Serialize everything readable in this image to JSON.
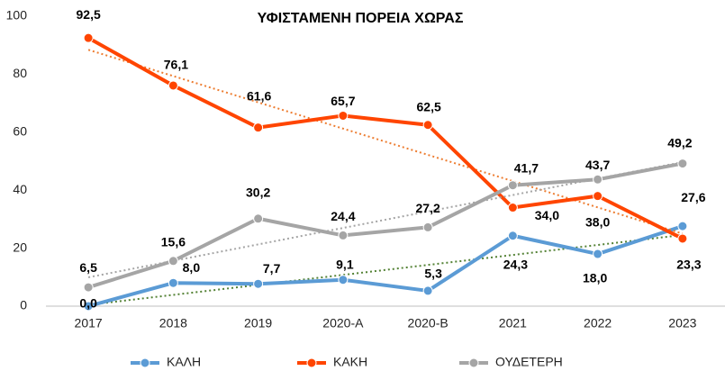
{
  "chart_data": {
    "type": "line",
    "title": "ΥΦΙΣΤΑΜΕΝΗ ΠΟΡΕΙΑ ΧΩΡΑΣ",
    "categories": [
      "2017",
      "2018",
      "2019",
      "2020-A",
      "2020-B",
      "2021",
      "2022",
      "2023"
    ],
    "series": [
      {
        "name": "ΚΑΛΗ",
        "color": "#5b9bd5",
        "trend_color": "#548235",
        "values": [
          0.0,
          8.0,
          7.7,
          9.1,
          5.3,
          24.3,
          18.0,
          27.6
        ],
        "value_labels": [
          "0,0",
          "8,0",
          "7,7",
          "9,1",
          "5,3",
          "24,3",
          "18,0",
          "27,6"
        ]
      },
      {
        "name": "ΚΑΚΗ",
        "color": "#ff4500",
        "trend_color": "#ed7d31",
        "values": [
          92.5,
          76.1,
          61.6,
          65.7,
          62.5,
          34.0,
          38.0,
          23.3
        ],
        "value_labels": [
          "92,5",
          "76,1",
          "61,6",
          "65,7",
          "62,5",
          "34,0",
          "38,0",
          "23,3"
        ]
      },
      {
        "name": "ΟΥΔΕΤΕΡΗ",
        "color": "#a5a5a5",
        "trend_color": "#a5a5a5",
        "values": [
          6.5,
          15.6,
          30.2,
          24.4,
          27.2,
          41.7,
          43.7,
          49.2
        ],
        "value_labels": [
          "6,5",
          "15,6",
          "30,2",
          "24,4",
          "27,2",
          "41,7",
          "43,7",
          "49,2"
        ]
      }
    ],
    "ylim": [
      0,
      100
    ],
    "yticks": [
      0,
      20,
      40,
      60,
      80,
      100
    ],
    "grid": false,
    "trendline": true,
    "legend": "bottom"
  }
}
